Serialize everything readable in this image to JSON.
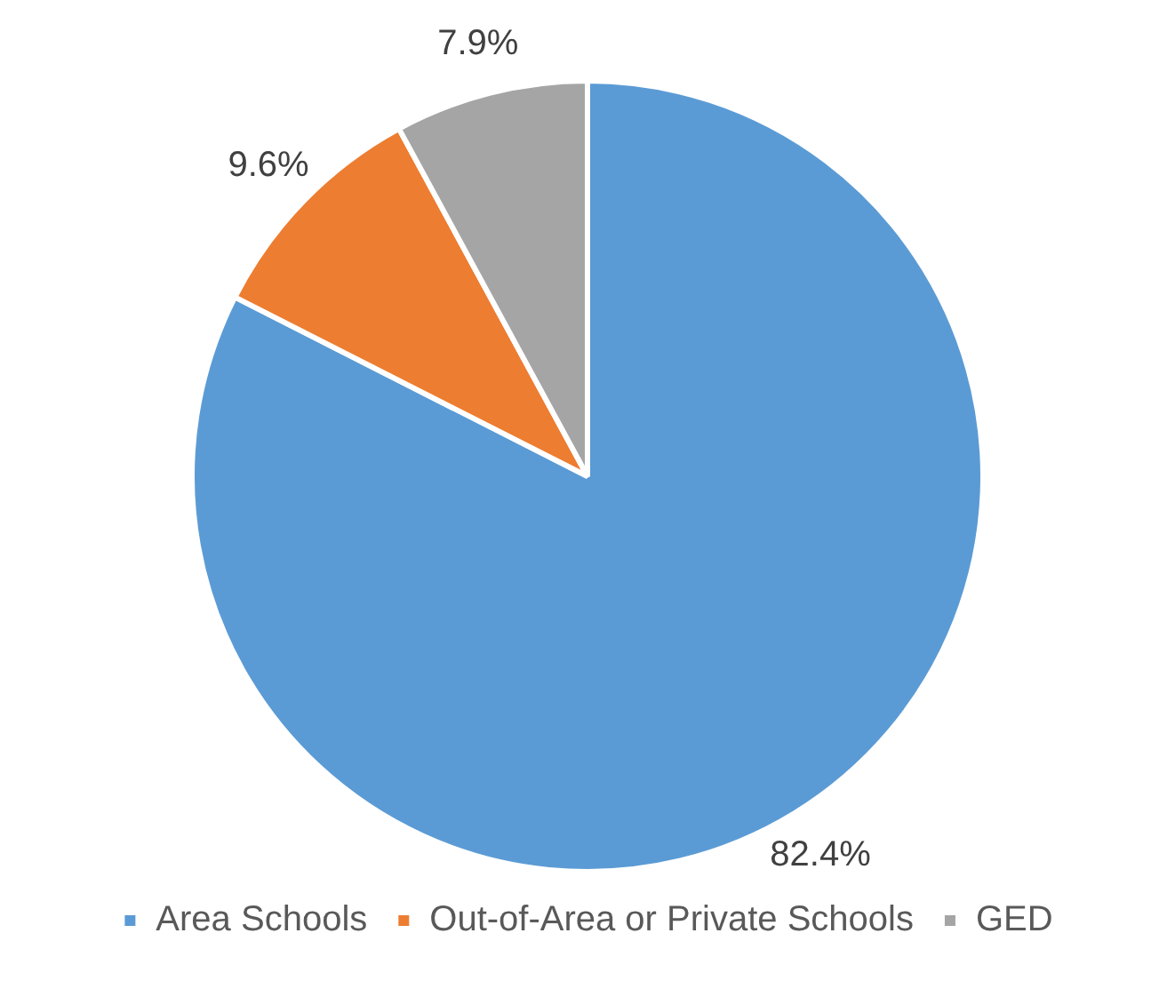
{
  "chart_data": {
    "type": "pie",
    "categories": [
      "Area Schools",
      "Out-of-Area or Private Schools",
      "GED"
    ],
    "values": [
      82.4,
      9.6,
      7.9
    ],
    "colors": [
      "#5b9bd5",
      "#ed7d31",
      "#a5a5a5"
    ],
    "value_labels": [
      "82.4%",
      "9.6%",
      "7.9%"
    ],
    "legend": "bottom"
  }
}
